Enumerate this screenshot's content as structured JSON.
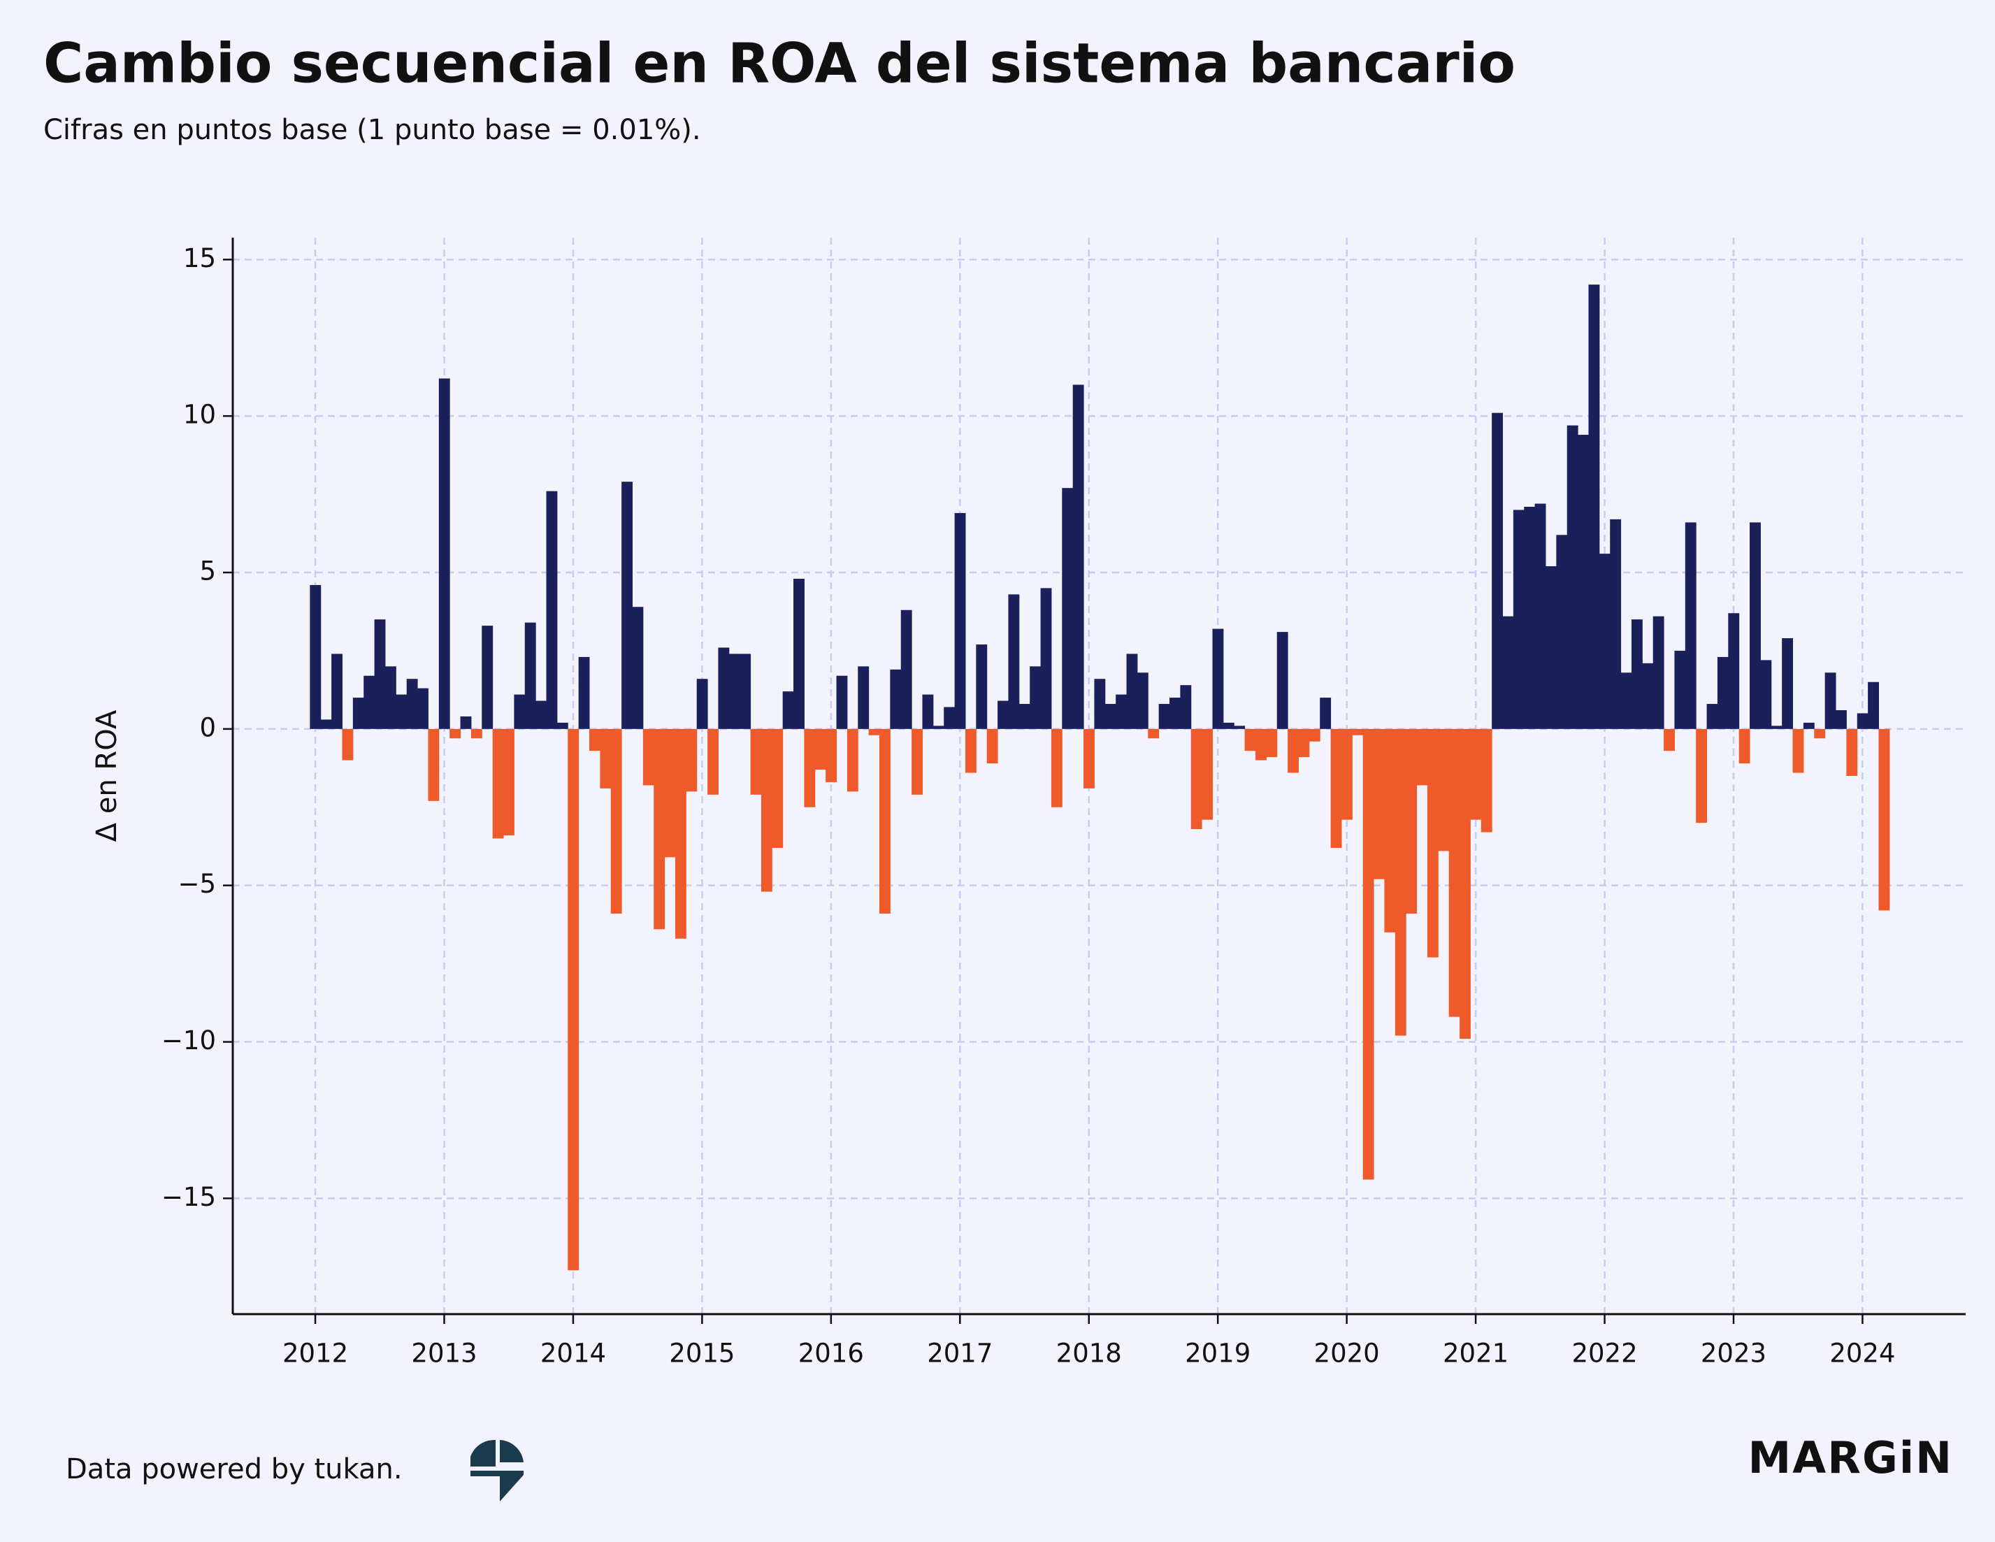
{
  "chart_data": {
    "type": "bar",
    "title": "Cambio secuencial en ROA del sistema bancario",
    "subtitle": "Cifras en puntos base (1 punto base = 0.01%).",
    "y_label": "Δ en ROA",
    "footer": "Data powered by tukan.",
    "brand": "MARGiN",
    "positive_color": "#19205a",
    "negative_color": "#ef5a2a",
    "grid": true,
    "x": [
      "2012-01",
      "2012-02",
      "2012-03",
      "2012-04",
      "2012-05",
      "2012-06",
      "2012-07",
      "2012-08",
      "2012-09",
      "2012-10",
      "2012-11",
      "2012-12",
      "2013-01",
      "2013-02",
      "2013-03",
      "2013-04",
      "2013-05",
      "2013-06",
      "2013-07",
      "2013-08",
      "2013-09",
      "2013-10",
      "2013-11",
      "2013-12",
      "2014-01",
      "2014-02",
      "2014-03",
      "2014-04",
      "2014-05",
      "2014-06",
      "2014-07",
      "2014-08",
      "2014-09",
      "2014-10",
      "2014-11",
      "2014-12",
      "2015-01",
      "2015-02",
      "2015-03",
      "2015-04",
      "2015-05",
      "2015-06",
      "2015-07",
      "2015-08",
      "2015-09",
      "2015-10",
      "2015-11",
      "2015-12",
      "2016-01",
      "2016-02",
      "2016-03",
      "2016-04",
      "2016-05",
      "2016-06",
      "2016-07",
      "2016-08",
      "2016-09",
      "2016-10",
      "2016-11",
      "2016-12",
      "2017-01",
      "2017-02",
      "2017-03",
      "2017-04",
      "2017-05",
      "2017-06",
      "2017-07",
      "2017-08",
      "2017-09",
      "2017-10",
      "2017-11",
      "2017-12",
      "2018-01",
      "2018-02",
      "2018-03",
      "2018-04",
      "2018-05",
      "2018-06",
      "2018-07",
      "2018-08",
      "2018-09",
      "2018-10",
      "2018-11",
      "2018-12",
      "2019-01",
      "2019-02",
      "2019-03",
      "2019-04",
      "2019-05",
      "2019-06",
      "2019-07",
      "2019-08",
      "2019-09",
      "2019-10",
      "2019-11",
      "2019-12",
      "2020-01",
      "2020-02",
      "2020-03",
      "2020-04",
      "2020-05",
      "2020-06",
      "2020-07",
      "2020-08",
      "2020-09",
      "2020-10",
      "2020-11",
      "2020-12",
      "2021-01",
      "2021-02",
      "2021-03",
      "2021-04",
      "2021-05",
      "2021-06",
      "2021-07",
      "2021-08",
      "2021-09",
      "2021-10",
      "2021-11",
      "2021-12",
      "2022-01",
      "2022-02",
      "2022-03",
      "2022-04",
      "2022-05",
      "2022-06",
      "2022-07",
      "2022-08",
      "2022-09",
      "2022-10",
      "2022-11",
      "2022-12",
      "2023-01",
      "2023-02",
      "2023-03",
      "2023-04",
      "2023-05",
      "2023-06",
      "2023-07",
      "2023-08",
      "2023-09",
      "2023-10",
      "2023-11",
      "2023-12",
      "2024-01",
      "2024-02",
      "2024-03"
    ],
    "values": [
      4.6,
      0.3,
      2.4,
      -1.0,
      1.0,
      1.7,
      3.5,
      2.0,
      1.1,
      1.6,
      1.3,
      -2.3,
      11.2,
      -0.3,
      0.4,
      -0.3,
      3.3,
      -3.5,
      -3.4,
      1.1,
      3.4,
      0.9,
      7.6,
      0.2,
      -17.3,
      2.3,
      -0.7,
      -1.9,
      -5.9,
      7.9,
      3.9,
      -1.8,
      -6.4,
      -4.1,
      -6.7,
      -2.0,
      1.6,
      -2.1,
      2.6,
      2.4,
      2.4,
      -2.1,
      -5.2,
      -3.8,
      1.2,
      4.8,
      -2.5,
      -1.3,
      -1.7,
      1.7,
      -2.0,
      2.0,
      -0.2,
      -5.9,
      1.9,
      3.8,
      -2.1,
      1.1,
      0.1,
      0.7,
      6.9,
      -1.4,
      2.7,
      -1.1,
      0.9,
      4.3,
      0.8,
      2.0,
      4.5,
      -2.5,
      7.7,
      11.0,
      -1.9,
      1.6,
      0.8,
      1.1,
      2.4,
      1.8,
      -0.3,
      0.8,
      1.0,
      1.4,
      -3.2,
      -2.9,
      3.2,
      0.2,
      0.1,
      -0.7,
      -1.0,
      -0.9,
      3.1,
      -1.4,
      -0.9,
      -0.4,
      1.0,
      -3.8,
      -2.9,
      -0.2,
      -14.4,
      -4.8,
      -6.5,
      -9.8,
      -5.9,
      -1.8,
      -7.3,
      -3.9,
      -9.2,
      -9.9,
      -2.9,
      -3.3,
      10.1,
      3.6,
      7.0,
      7.1,
      7.2,
      5.2,
      6.2,
      9.7,
      9.4,
      14.2,
      5.6,
      6.7,
      1.8,
      3.5,
      2.1,
      3.6,
      -0.7,
      2.5,
      6.6,
      -3.0,
      0.8,
      2.3,
      3.7,
      -1.1,
      6.6,
      2.2,
      0.1,
      2.9,
      -1.4,
      0.2,
      -0.3,
      1.8,
      0.6,
      -1.5,
      0.5,
      1.5,
      -5.8
    ],
    "xlim": [
      2011.36,
      2024.8
    ],
    "xticks": [
      2012,
      2013,
      2014,
      2015,
      2016,
      2017,
      2018,
      2019,
      2020,
      2021,
      2022,
      2023,
      2024
    ],
    "ylim": [
      -18.7,
      15.7
    ],
    "yticks": [
      {
        "value": -15,
        "label": "−15"
      },
      {
        "value": -10,
        "label": "−10"
      },
      {
        "value": -5,
        "label": "−5"
      },
      0,
      5,
      10,
      15
    ]
  }
}
